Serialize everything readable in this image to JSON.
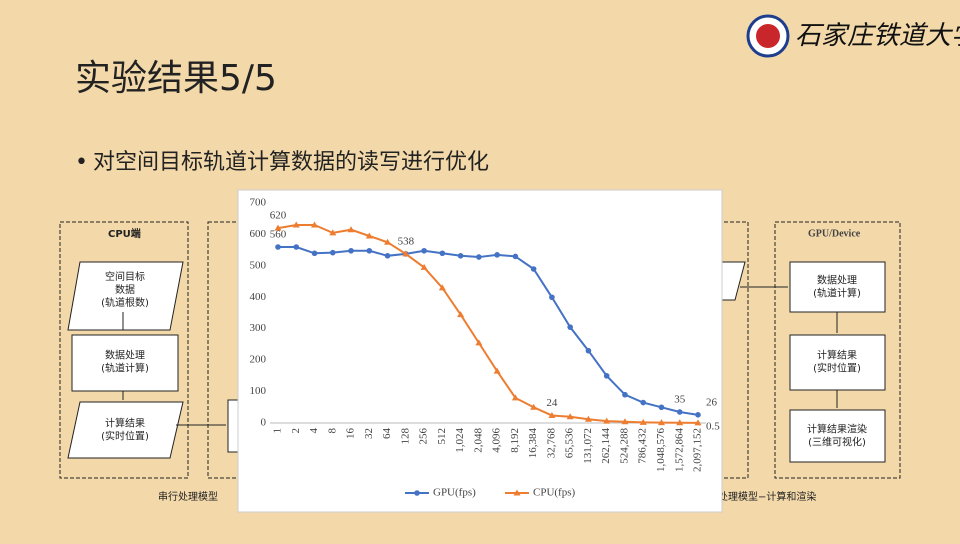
{
  "slide": {
    "title": "实验结果5/5",
    "bullet": "对空间目标轨道计算数据的读写进行优化",
    "logo_text": "石家庄铁道大学"
  },
  "diagram": {
    "left": {
      "title": "CPU端",
      "nodes": [
        [
          "空间目标",
          "数据",
          "(轨道根数)"
        ],
        [
          "数据处理",
          "(轨道计算)"
        ],
        [
          "计算结果",
          "(实时位置)"
        ]
      ],
      "caption": "串行处理模型"
    },
    "right": {
      "title": "GPU/Device",
      "nodes": [
        [
          "数据处理",
          "(轨道计算)"
        ],
        [
          "计算结果",
          "(实时位置)"
        ],
        [
          "计算结果渲染",
          "(三维可视化)"
        ]
      ],
      "caption": "处理模型−计算和渲染"
    }
  },
  "chart_data": {
    "type": "line",
    "categories": [
      "1",
      "2",
      "4",
      "8",
      "16",
      "32",
      "64",
      "128",
      "256",
      "512",
      "1,024",
      "2,048",
      "4,096",
      "8,192",
      "16,384",
      "32,768",
      "65,536",
      "131,072",
      "262,144",
      "524,288",
      "786,432",
      "1,048,576",
      "1,572,864",
      "2,097,152"
    ],
    "series": [
      {
        "name": "GPU(fps)",
        "color": "#4472c4",
        "marker": "circle",
        "values": [
          560,
          560,
          540,
          542,
          548,
          548,
          532,
          538,
          548,
          540,
          532,
          528,
          535,
          530,
          490,
          400,
          305,
          230,
          150,
          90,
          65,
          50,
          35,
          26
        ],
        "value_labels": [
          "560",
          null,
          null,
          null,
          null,
          null,
          null,
          null,
          null,
          null,
          null,
          null,
          null,
          null,
          null,
          null,
          null,
          null,
          null,
          null,
          null,
          null,
          "35",
          "26"
        ]
      },
      {
        "name": "CPU(fps)",
        "color": "#ed7d31",
        "marker": "triangle",
        "values": [
          620,
          630,
          630,
          605,
          615,
          595,
          575,
          538,
          495,
          430,
          345,
          255,
          165,
          80,
          50,
          24,
          20,
          12,
          6,
          4,
          2,
          1,
          0.8,
          0.5
        ],
        "value_labels": [
          "620",
          null,
          null,
          null,
          null,
          null,
          null,
          "538",
          null,
          null,
          null,
          null,
          null,
          null,
          null,
          "24",
          null,
          null,
          null,
          null,
          null,
          null,
          null,
          "0.5"
        ]
      }
    ],
    "ylim": [
      0,
      700
    ],
    "yticks": [
      0,
      100,
      200,
      300,
      400,
      500,
      600,
      700
    ],
    "grid": false,
    "legend": "bottom"
  }
}
